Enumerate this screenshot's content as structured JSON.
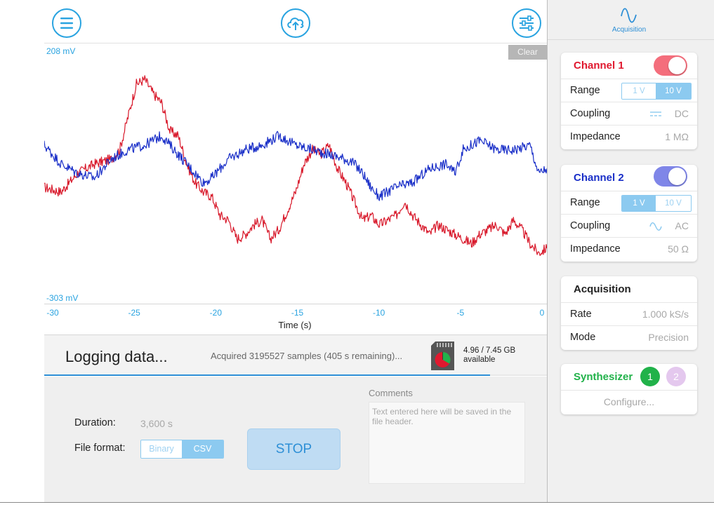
{
  "toolbar": {
    "menu_icon": "hamburger-menu-icon",
    "upload_icon": "cloud-upload-icon",
    "settings_icon": "sliders-icon",
    "accent": "#29a3e0"
  },
  "plot": {
    "clear_label": "Clear",
    "y_max_label": "208 mV",
    "y_min_label": "-303 mV",
    "x_ticks": [
      "-30",
      "-25",
      "-20",
      "-15",
      "-10",
      "-5",
      "0"
    ],
    "x_label": "Time (s)"
  },
  "chart_data": {
    "type": "line",
    "x_unit": "s",
    "y_unit": "mV",
    "xlim": [
      -30,
      0
    ],
    "ylim": [
      -303,
      208
    ],
    "series": [
      {
        "color": "#d8182a",
        "x": [
          -30,
          -29,
          -28,
          -27,
          -26,
          -25.5,
          -25,
          -24.5,
          -24,
          -23.5,
          -23,
          -22.5,
          -22,
          -21.5,
          -21,
          -20.5,
          -20,
          -19.5,
          -19,
          -18.5,
          -18,
          -17.5,
          -17,
          -16.5,
          -16,
          -15.5,
          -15,
          -14.5,
          -14,
          -13.5,
          -13,
          -12.5,
          -12,
          -11.5,
          -11,
          -10.5,
          -10,
          -9.5,
          -9,
          -8.5,
          -8,
          -7.5,
          -7,
          -6.5,
          -6,
          -5.5,
          -5,
          -4.5,
          -4,
          -3.5,
          -3,
          -2.5,
          -2,
          -1.5,
          -1,
          -0.5,
          0
        ],
        "y": [
          -70,
          -80,
          -40,
          -20,
          -10,
          10,
          80,
          150,
          160,
          130,
          110,
          50,
          40,
          -20,
          -60,
          -80,
          -90,
          -130,
          -140,
          -180,
          -170,
          -150,
          -140,
          -180,
          -160,
          -120,
          -80,
          -20,
          10,
          0,
          20,
          -30,
          -60,
          -100,
          -140,
          -130,
          -150,
          -140,
          -130,
          -100,
          -130,
          -150,
          -170,
          -150,
          -160,
          -170,
          -180,
          -190,
          -170,
          -160,
          -150,
          -170,
          -140,
          -160,
          -190,
          -210,
          -200
        ]
      },
      {
        "color": "#1a2fc8",
        "x": [
          -30,
          -29,
          -28,
          -27,
          -26,
          -25,
          -24,
          -23,
          -22,
          -21,
          -20.5,
          -20,
          -19,
          -18,
          -17,
          -16,
          -15,
          -14,
          -13,
          -12,
          -11.5,
          -11,
          -10.5,
          -10,
          -9.5,
          -9,
          -8,
          -7,
          -6,
          -5.5,
          -5,
          -4.5,
          -4,
          -3,
          -2,
          -1,
          -0.5,
          0
        ],
        "y": [
          20,
          -20,
          -40,
          -50,
          -10,
          10,
          20,
          40,
          0,
          -40,
          -60,
          -50,
          -10,
          10,
          20,
          40,
          20,
          10,
          0,
          -10,
          -20,
          -40,
          -70,
          -90,
          -80,
          -70,
          -60,
          -30,
          -20,
          -40,
          10,
          20,
          30,
          10,
          10,
          20,
          -40,
          -30
        ]
      }
    ]
  },
  "logging": {
    "title": "Logging data...",
    "status": "Acquired 3195527 samples (405 s remaining)...",
    "storage_line1": "4.96 / 7.45 GB",
    "storage_line2": "available",
    "sd_icon": "sd-card-icon",
    "progress": 0.887
  },
  "controls": {
    "duration_label": "Duration:",
    "duration_value": "3,600 s",
    "file_format_label": "File format:",
    "format_options": [
      "Binary",
      "CSV"
    ],
    "format_selected": "CSV",
    "stop_label": "STOP",
    "comments_label": "Comments",
    "comments_placeholder": "Text entered here will be saved in the file header."
  },
  "side": {
    "tab_label": "Acquisition",
    "tab_icon": "sine-wave-icon",
    "channel1": {
      "title": "Channel 1",
      "color": "#e0192f",
      "toggle_color": "#f46e7c",
      "enabled": true,
      "range_label": "Range",
      "range_options": [
        "1 V",
        "10 V"
      ],
      "range_selected": "10 V",
      "coupling_label": "Coupling",
      "coupling_value": "DC",
      "coupling_icon": "dc-coupling-icon",
      "impedance_label": "Impedance",
      "impedance_value": "1 MΩ"
    },
    "channel2": {
      "title": "Channel 2",
      "color": "#1a2fc8",
      "toggle_color": "#7f86e8",
      "enabled": true,
      "range_label": "Range",
      "range_options": [
        "1 V",
        "10 V"
      ],
      "range_selected": "1 V",
      "coupling_label": "Coupling",
      "coupling_value": "AC",
      "coupling_icon": "ac-coupling-icon",
      "impedance_label": "Impedance",
      "impedance_value": "50 Ω"
    },
    "acquisition": {
      "title": "Acquisition",
      "rate_label": "Rate",
      "rate_value": "1.000 kS/s",
      "mode_label": "Mode",
      "mode_value": "Precision"
    },
    "synthesizer": {
      "title": "Synthesizer",
      "color": "#21b24a",
      "button1": "1",
      "button1_color": "#21b24a",
      "button2": "2",
      "button2_color": "#e4c8ee",
      "configure_label": "Configure..."
    }
  }
}
